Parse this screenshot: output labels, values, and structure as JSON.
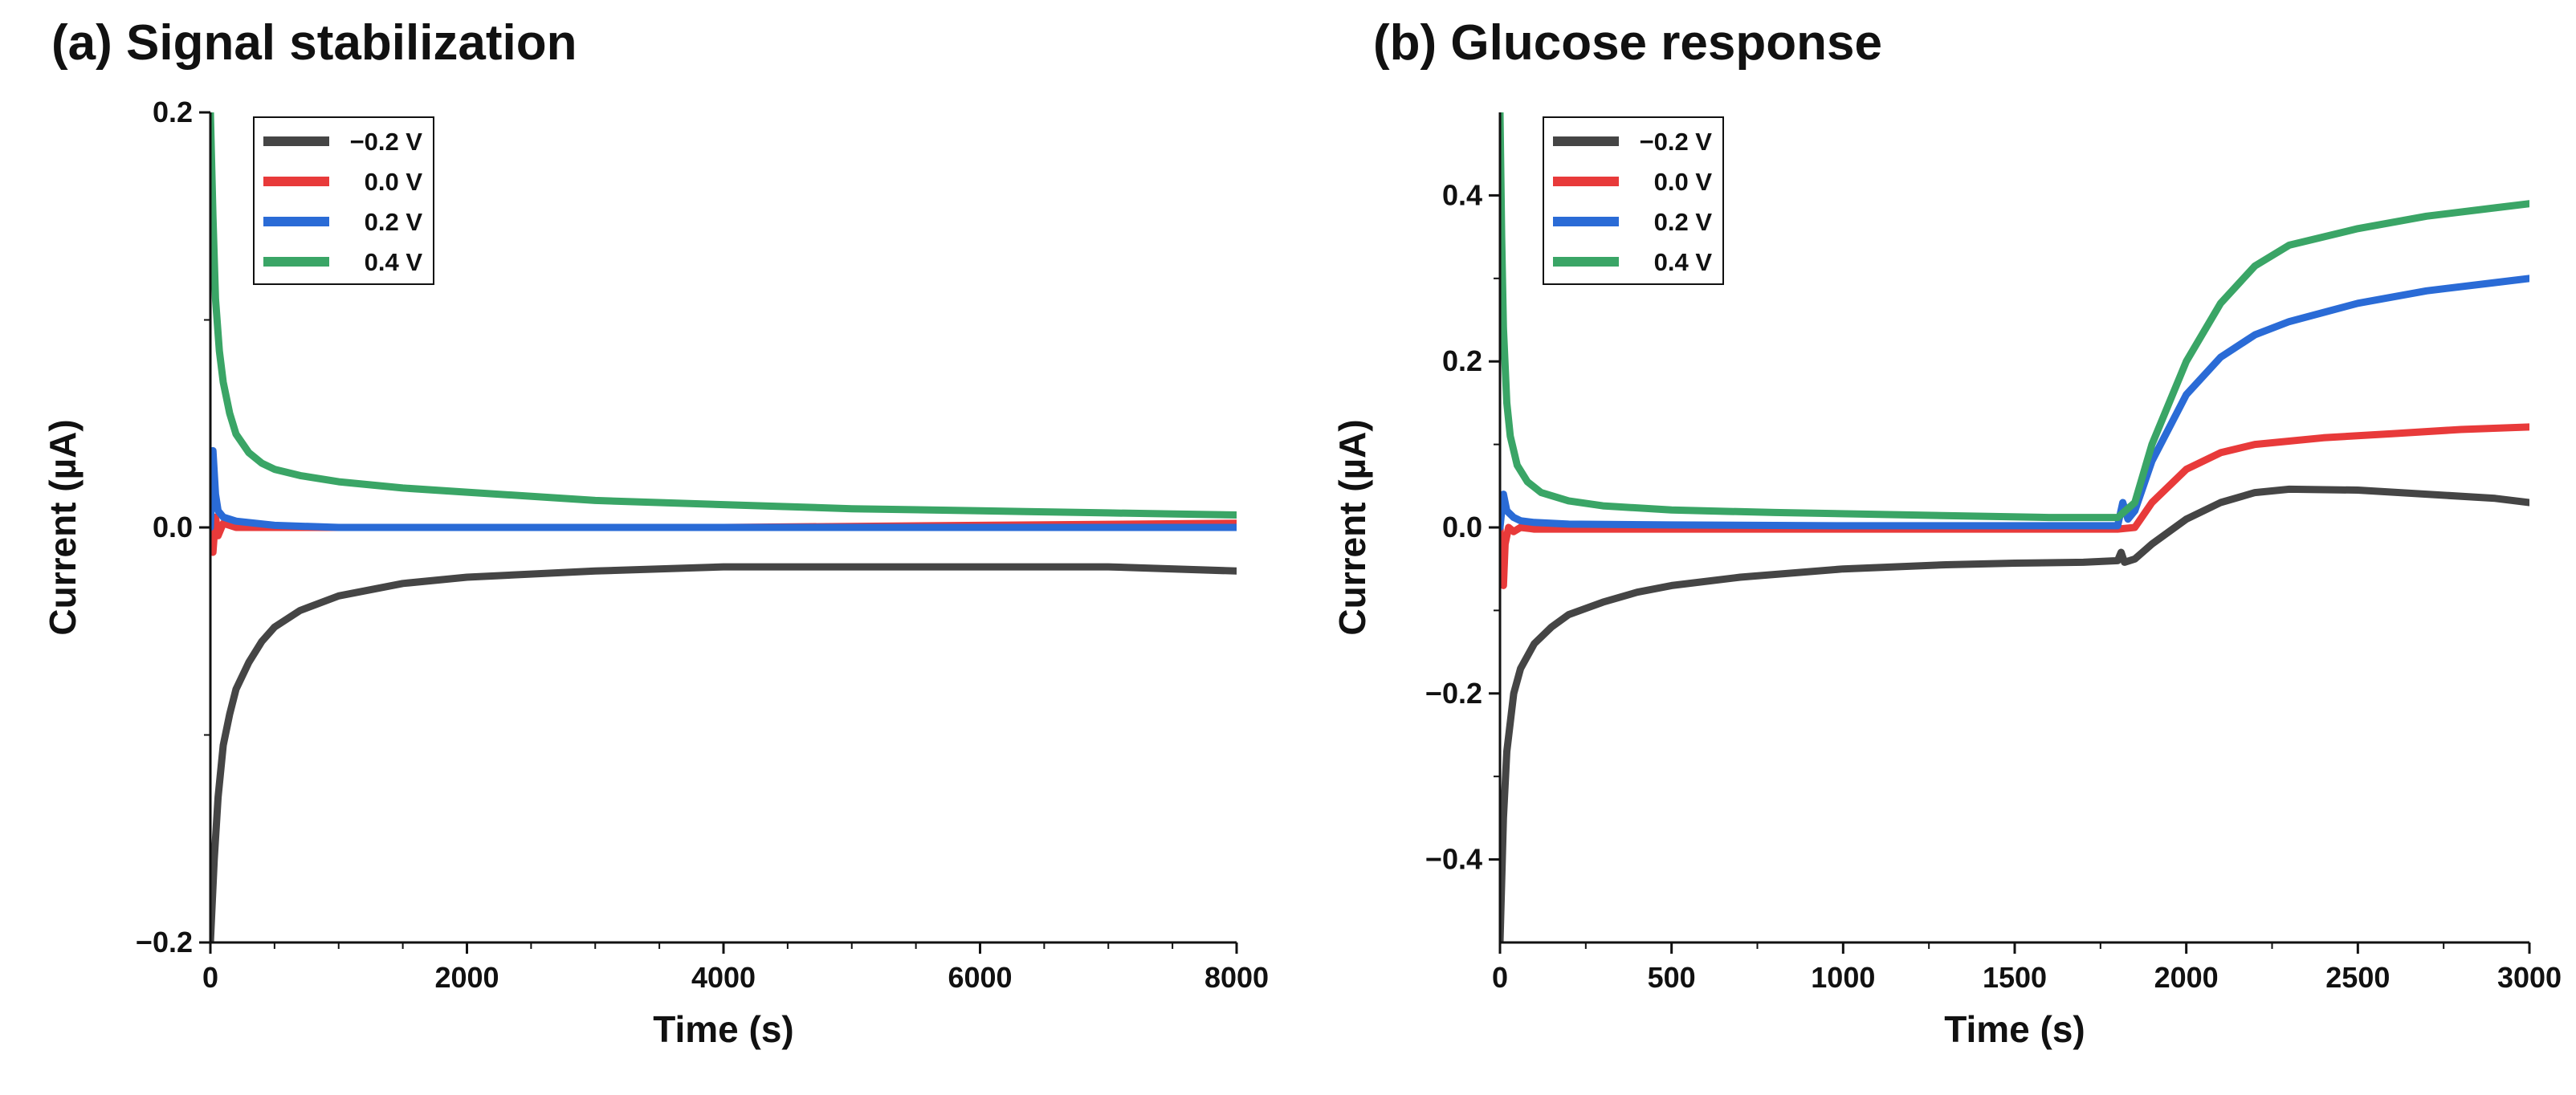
{
  "colors": {
    "neg02": "#454545",
    "v00": "#e83a3a",
    "v02": "#2a6bd6",
    "v04": "#3aa566"
  },
  "chart_data": [
    {
      "id": "a",
      "type": "line",
      "title": "(a) Signal stabilization",
      "xlabel": "Time (s)",
      "ylabel": "Current (µA)",
      "xlim": [
        0,
        8000
      ],
      "ylim": [
        -0.2,
        0.2
      ],
      "xticks": [
        0,
        2000,
        4000,
        6000,
        8000
      ],
      "yticks": [
        -0.2,
        0.0,
        0.2
      ],
      "xtick_labels": [
        "0",
        "2000",
        "4000",
        "6000",
        "8000"
      ],
      "ytick_labels": [
        "−0.2",
        "0.0",
        "0.2"
      ],
      "legend": "top-left",
      "series": [
        {
          "name": "−0.2  V",
          "color": "#454545",
          "x": [
            0,
            30,
            60,
            100,
            150,
            200,
            300,
            400,
            500,
            700,
            1000,
            1500,
            2000,
            3000,
            4000,
            5000,
            6000,
            7000,
            8000
          ],
          "y": [
            -0.2,
            -0.16,
            -0.13,
            -0.105,
            -0.09,
            -0.078,
            -0.065,
            -0.055,
            -0.048,
            -0.04,
            -0.033,
            -0.027,
            -0.024,
            -0.021,
            -0.019,
            -0.019,
            -0.019,
            -0.019,
            -0.021
          ]
        },
        {
          "name": "0.0  V",
          "color": "#e83a3a",
          "x": [
            0,
            20,
            40,
            60,
            100,
            200,
            500,
            1000,
            2000,
            4000,
            6000,
            8000
          ],
          "y": [
            0.0,
            -0.012,
            0.005,
            -0.004,
            0.002,
            0.0,
            0.0,
            0.0,
            0.0,
            0.0,
            0.001,
            0.002
          ]
        },
        {
          "name": "0.2  V",
          "color": "#2a6bd6",
          "x": [
            0,
            20,
            40,
            60,
            100,
            200,
            500,
            1000,
            2000,
            4000,
            6000,
            8000
          ],
          "y": [
            0.0,
            0.037,
            0.016,
            0.008,
            0.005,
            0.003,
            0.001,
            0.0,
            0.0,
            0.0,
            0.0,
            0.0
          ]
        },
        {
          "name": "0.4  V",
          "color": "#3aa566",
          "x": [
            0,
            20,
            40,
            70,
            100,
            150,
            200,
            300,
            400,
            500,
            700,
            1000,
            1500,
            2000,
            3000,
            4000,
            5000,
            6000,
            7000,
            8000
          ],
          "y": [
            0.2,
            0.15,
            0.11,
            0.085,
            0.07,
            0.055,
            0.045,
            0.036,
            0.031,
            0.028,
            0.025,
            0.022,
            0.019,
            0.017,
            0.013,
            0.011,
            0.009,
            0.008,
            0.007,
            0.006
          ]
        }
      ]
    },
    {
      "id": "b",
      "type": "line",
      "title": "(b) Glucose response",
      "xlabel": "Time (s)",
      "ylabel": "Current (µA)",
      "xlim": [
        0,
        3000
      ],
      "ylim": [
        -0.5,
        0.5
      ],
      "xticks": [
        0,
        500,
        1000,
        1500,
        2000,
        2500,
        3000
      ],
      "yticks": [
        -0.4,
        -0.2,
        0.0,
        0.2,
        0.4
      ],
      "xtick_labels": [
        "0",
        "500",
        "1000",
        "1500",
        "2000",
        "2500",
        "3000"
      ],
      "ytick_labels": [
        "−0.4",
        "−0.2",
        "0.0",
        "0.2",
        "0.4"
      ],
      "legend": "top-left",
      "series": [
        {
          "name": "−0.2  V",
          "color": "#454545",
          "x": [
            0,
            10,
            20,
            40,
            60,
            100,
            150,
            200,
            300,
            400,
            500,
            700,
            1000,
            1300,
            1500,
            1700,
            1800,
            1810,
            1820,
            1850,
            1900,
            2000,
            2100,
            2200,
            2300,
            2500,
            2700,
            2900,
            3000
          ],
          "y": [
            -0.5,
            -0.35,
            -0.27,
            -0.2,
            -0.17,
            -0.14,
            -0.12,
            -0.105,
            -0.09,
            -0.078,
            -0.07,
            -0.06,
            -0.05,
            -0.045,
            -0.043,
            -0.042,
            -0.04,
            -0.03,
            -0.042,
            -0.038,
            -0.02,
            0.01,
            0.03,
            0.042,
            0.046,
            0.045,
            0.04,
            0.035,
            0.03
          ]
        },
        {
          "name": "0.0  V",
          "color": "#e83a3a",
          "x": [
            0,
            10,
            15,
            25,
            40,
            60,
            100,
            300,
            800,
            1500,
            1800,
            1850,
            1900,
            2000,
            2100,
            2200,
            2400,
            2600,
            2800,
            3000
          ],
          "y": [
            0.0,
            -0.07,
            -0.02,
            0.0,
            -0.005,
            0.0,
            -0.002,
            -0.002,
            -0.002,
            -0.002,
            -0.002,
            0.0,
            0.03,
            0.07,
            0.09,
            0.1,
            0.108,
            0.113,
            0.118,
            0.121
          ]
        },
        {
          "name": "0.2  V",
          "color": "#2a6bd6",
          "x": [
            0,
            10,
            20,
            40,
            60,
            100,
            200,
            500,
            1000,
            1500,
            1800,
            1815,
            1830,
            1850,
            1900,
            2000,
            2100,
            2200,
            2300,
            2500,
            2700,
            2900,
            3000
          ],
          "y": [
            0.0,
            0.04,
            0.02,
            0.012,
            0.008,
            0.006,
            0.004,
            0.003,
            0.002,
            0.002,
            0.002,
            0.03,
            0.01,
            0.02,
            0.08,
            0.16,
            0.205,
            0.232,
            0.248,
            0.27,
            0.285,
            0.295,
            0.3
          ]
        },
        {
          "name": "0.4  V",
          "color": "#3aa566",
          "x": [
            0,
            5,
            10,
            20,
            30,
            50,
            80,
            120,
            200,
            300,
            500,
            800,
            1200,
            1600,
            1800,
            1850,
            1900,
            2000,
            2100,
            2200,
            2300,
            2500,
            2700,
            2900,
            3000
          ],
          "y": [
            0.5,
            0.35,
            0.24,
            0.15,
            0.11,
            0.075,
            0.055,
            0.042,
            0.032,
            0.026,
            0.021,
            0.018,
            0.015,
            0.012,
            0.012,
            0.03,
            0.1,
            0.2,
            0.27,
            0.315,
            0.34,
            0.36,
            0.375,
            0.385,
            0.39
          ]
        }
      ]
    }
  ]
}
